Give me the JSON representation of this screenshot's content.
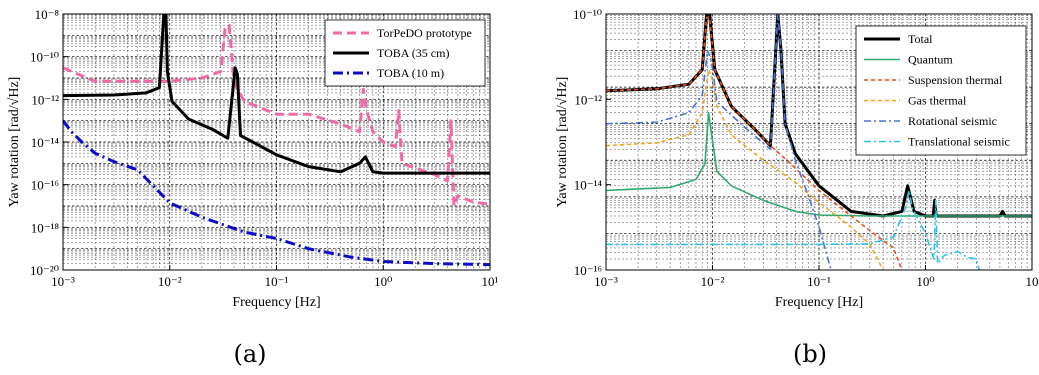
{
  "panel_labels": [
    "(a)",
    "(b)"
  ],
  "chart_data": [
    {
      "type": "line",
      "panel": "(a)",
      "xlabel": "Frequency [Hz]",
      "ylabel": "Yaw rotation [rad/√Hz]",
      "xscale": "log",
      "yscale": "log",
      "xlim": [
        0.001,
        10
      ],
      "ylim": [
        1e-20,
        1e-08
      ],
      "xticks": [
        "10⁻³",
        "10⁻²",
        "10⁻¹",
        "10⁰",
        "10¹"
      ],
      "yticks": [
        "10⁻²⁰",
        "10⁻¹⁸",
        "10⁻¹⁶",
        "10⁻¹⁴",
        "10⁻¹²",
        "10⁻¹⁰",
        "10⁻⁸"
      ],
      "grid": true,
      "legend_position": "top-right",
      "series": [
        {
          "name": "TorPeDO prototype",
          "color": "#f06aa8",
          "style": "dashed",
          "points": [
            [
              0.001,
              3e-11
            ],
            [
              0.002,
              7e-12
            ],
            [
              0.005,
              7e-12
            ],
            [
              0.01,
              7e-12
            ],
            [
              0.02,
              1e-11
            ],
            [
              0.03,
              2e-11
            ],
            [
              0.033,
              2e-09
            ],
            [
              0.036,
              3e-09
            ],
            [
              0.04,
              6e-12
            ],
            [
              0.05,
              8e-13
            ],
            [
              0.1,
              2e-13
            ],
            [
              0.2,
              2e-13
            ],
            [
              0.4,
              7e-14
            ],
            [
              0.6,
              3e-14
            ],
            [
              0.65,
              3e-12
            ],
            [
              0.7,
              3e-13
            ],
            [
              0.8,
              3e-14
            ],
            [
              1.0,
              1e-14
            ],
            [
              1.3,
              6e-15
            ],
            [
              1.4,
              3e-13
            ],
            [
              1.5,
              1e-15
            ],
            [
              2,
              6e-16
            ],
            [
              3,
              3e-16
            ],
            [
              4,
              1.5e-16
            ],
            [
              4.3,
              1e-13
            ],
            [
              4.6,
              1e-17
            ],
            [
              5,
              3e-17
            ],
            [
              7,
              1.5e-17
            ],
            [
              10,
              1.2e-17
            ]
          ]
        },
        {
          "name": "TOBA (35 cm)",
          "color": "#000000",
          "style": "solid",
          "points": [
            [
              0.001,
              1.5e-12
            ],
            [
              0.003,
              1.6e-12
            ],
            [
              0.006,
              2e-12
            ],
            [
              0.008,
              3.5e-12
            ],
            [
              0.0088,
              1e-08
            ],
            [
              0.0092,
              1e-08
            ],
            [
              0.0095,
              2e-11
            ],
            [
              0.0105,
              8e-13
            ],
            [
              0.015,
              1.2e-13
            ],
            [
              0.025,
              4e-14
            ],
            [
              0.035,
              1.5e-14
            ],
            [
              0.041,
              3e-11
            ],
            [
              0.043,
              1.5e-11
            ],
            [
              0.046,
              2e-14
            ],
            [
              0.06,
              1e-14
            ],
            [
              0.1,
              2.5e-15
            ],
            [
              0.2,
              7e-16
            ],
            [
              0.4,
              4e-16
            ],
            [
              0.6,
              1e-15
            ],
            [
              0.68,
              2e-15
            ],
            [
              0.8,
              4e-16
            ],
            [
              1.0,
              3.5e-16
            ],
            [
              2,
              3.5e-16
            ],
            [
              5,
              3.5e-16
            ],
            [
              10,
              3.5e-16
            ]
          ]
        },
        {
          "name": "TOBA (10 m)",
          "color": "#0c0cc8",
          "style": "dashdot",
          "points": [
            [
              0.001,
              1e-13
            ],
            [
              0.0012,
              3e-14
            ],
            [
              0.0015,
              1e-14
            ],
            [
              0.002,
              3e-15
            ],
            [
              0.003,
              1.2e-15
            ],
            [
              0.005,
              5e-16
            ],
            [
              0.01,
              1.4e-17
            ],
            [
              0.02,
              3e-18
            ],
            [
              0.05,
              6e-19
            ],
            [
              0.1,
              3e-19
            ],
            [
              0.2,
              1e-19
            ],
            [
              0.5,
              4e-20
            ],
            [
              1,
              2.5e-20
            ],
            [
              3,
              2e-20
            ],
            [
              10,
              1.8e-20
            ]
          ]
        }
      ]
    },
    {
      "type": "line",
      "panel": "(b)",
      "xlabel": "Frequency [Hz]",
      "ylabel": "Yaw rotation [rad/√Hz]",
      "xscale": "log",
      "yscale": "log",
      "xlim": [
        0.001,
        10
      ],
      "ylim": [
        1e-17,
        1e-10
      ],
      "xticks": [
        "10⁻³",
        "10⁻²",
        "10⁻¹",
        "10⁰",
        "10"
      ],
      "yticks": [
        "10⁻¹⁶",
        "10⁻¹⁴",
        "10⁻¹²",
        "10⁻¹⁰"
      ],
      "grid": true,
      "legend_position": "top-right",
      "series": [
        {
          "name": "Total",
          "color": "#000000",
          "style": "solid",
          "points": [
            [
              0.001,
              8e-13
            ],
            [
              0.003,
              9e-13
            ],
            [
              0.006,
              1.2e-12
            ],
            [
              0.008,
              3e-12
            ],
            [
              0.0088,
              1e-10
            ],
            [
              0.0094,
              1e-10
            ],
            [
              0.0105,
              3e-12
            ],
            [
              0.015,
              3e-13
            ],
            [
              0.025,
              7e-14
            ],
            [
              0.035,
              2.5e-14
            ],
            [
              0.041,
              1e-10
            ],
            [
              0.044,
              1e-11
            ],
            [
              0.048,
              1e-13
            ],
            [
              0.06,
              1.5e-14
            ],
            [
              0.1,
              2e-15
            ],
            [
              0.2,
              4e-16
            ],
            [
              0.4,
              3e-16
            ],
            [
              0.6,
              4e-16
            ],
            [
              0.68,
              2e-15
            ],
            [
              0.78,
              4e-16
            ],
            [
              1.0,
              3e-16
            ],
            [
              1.18,
              3e-16
            ],
            [
              1.22,
              8e-16
            ],
            [
              1.26,
              3e-16
            ],
            [
              2,
              3e-16
            ],
            [
              5,
              3e-16
            ],
            [
              5.3,
              4e-16
            ],
            [
              5.6,
              3e-16
            ],
            [
              10,
              3e-16
            ]
          ]
        },
        {
          "name": "Quantum",
          "color": "#2eaa6e",
          "style": "solid",
          "points": [
            [
              0.001,
              1.5e-15
            ],
            [
              0.004,
              1.8e-15
            ],
            [
              0.007,
              3e-15
            ],
            [
              0.0085,
              8e-15
            ],
            [
              0.0092,
              2e-13
            ],
            [
              0.0098,
              5e-14
            ],
            [
              0.011,
              5e-15
            ],
            [
              0.015,
              2e-15
            ],
            [
              0.03,
              8e-16
            ],
            [
              0.06,
              4e-16
            ],
            [
              0.1,
              3.2e-16
            ],
            [
              0.3,
              3e-16
            ],
            [
              1,
              3e-16
            ],
            [
              10,
              3e-16
            ]
          ]
        },
        {
          "name": "Suspension thermal",
          "color": "#e8501e",
          "style": "dashed",
          "points": [
            [
              0.001,
              8e-13
            ],
            [
              0.003,
              9e-13
            ],
            [
              0.006,
              1.2e-12
            ],
            [
              0.008,
              3e-12
            ],
            [
              0.0088,
              8e-11
            ],
            [
              0.0094,
              8e-11
            ],
            [
              0.0105,
              3e-12
            ],
            [
              0.015,
              3e-13
            ],
            [
              0.025,
              7e-14
            ],
            [
              0.035,
              2.5e-14
            ],
            [
              0.05,
              1e-14
            ],
            [
              0.1,
              1.5e-15
            ],
            [
              0.2,
              3e-16
            ],
            [
              0.3,
              1.2e-16
            ],
            [
              0.5,
              4e-17
            ],
            [
              0.6,
              1e-17
            ]
          ]
        },
        {
          "name": "Gas thermal",
          "color": "#f2a51e",
          "style": "dashed",
          "points": [
            [
              0.001,
              2.5e-14
            ],
            [
              0.003,
              3e-14
            ],
            [
              0.006,
              5e-14
            ],
            [
              0.008,
              2e-13
            ],
            [
              0.0092,
              3e-12
            ],
            [
              0.0098,
              2e-12
            ],
            [
              0.011,
              3e-13
            ],
            [
              0.015,
              5e-14
            ],
            [
              0.03,
              1e-14
            ],
            [
              0.06,
              2.5e-15
            ],
            [
              0.1,
              7e-16
            ],
            [
              0.2,
              1.5e-16
            ],
            [
              0.3,
              5e-17
            ],
            [
              0.4,
              1e-17
            ]
          ]
        },
        {
          "name": "Rotational seismic",
          "color": "#4c72d8",
          "style": "dashdot",
          "points": [
            [
              0.001,
              1e-13
            ],
            [
              0.003,
              1.1e-13
            ],
            [
              0.006,
              2e-13
            ],
            [
              0.008,
              6e-13
            ],
            [
              0.009,
              1e-11
            ],
            [
              0.0098,
              5e-12
            ],
            [
              0.011,
              4e-13
            ],
            [
              0.02,
              8e-14
            ],
            [
              0.035,
              2e-14
            ],
            [
              0.041,
              1e-10
            ],
            [
              0.044,
              1e-11
            ],
            [
              0.048,
              1e-13
            ],
            [
              0.06,
              1e-14
            ],
            [
              0.08,
              1e-15
            ],
            [
              0.1,
              1.5e-16
            ],
            [
              0.13,
              1e-17
            ]
          ]
        },
        {
          "name": "Translational seismic",
          "color": "#28c4ec",
          "style": "dashdot",
          "points": [
            [
              0.001,
              5e-17
            ],
            [
              0.01,
              5e-17
            ],
            [
              0.1,
              5e-17
            ],
            [
              0.3,
              5.2e-17
            ],
            [
              0.5,
              8e-17
            ],
            [
              0.65,
              5e-16
            ],
            [
              0.7,
              1.5e-15
            ],
            [
              0.75,
              5e-16
            ],
            [
              1.0,
              1e-16
            ],
            [
              1.2,
              2e-17
            ],
            [
              1.25,
              8e-16
            ],
            [
              1.3,
              1.5e-17
            ],
            [
              1.5,
              2.5e-17
            ],
            [
              2,
              3.2e-17
            ],
            [
              2.5,
              2.2e-17
            ],
            [
              3,
              2e-17
            ],
            [
              3.2,
              1e-17
            ]
          ]
        }
      ]
    }
  ]
}
